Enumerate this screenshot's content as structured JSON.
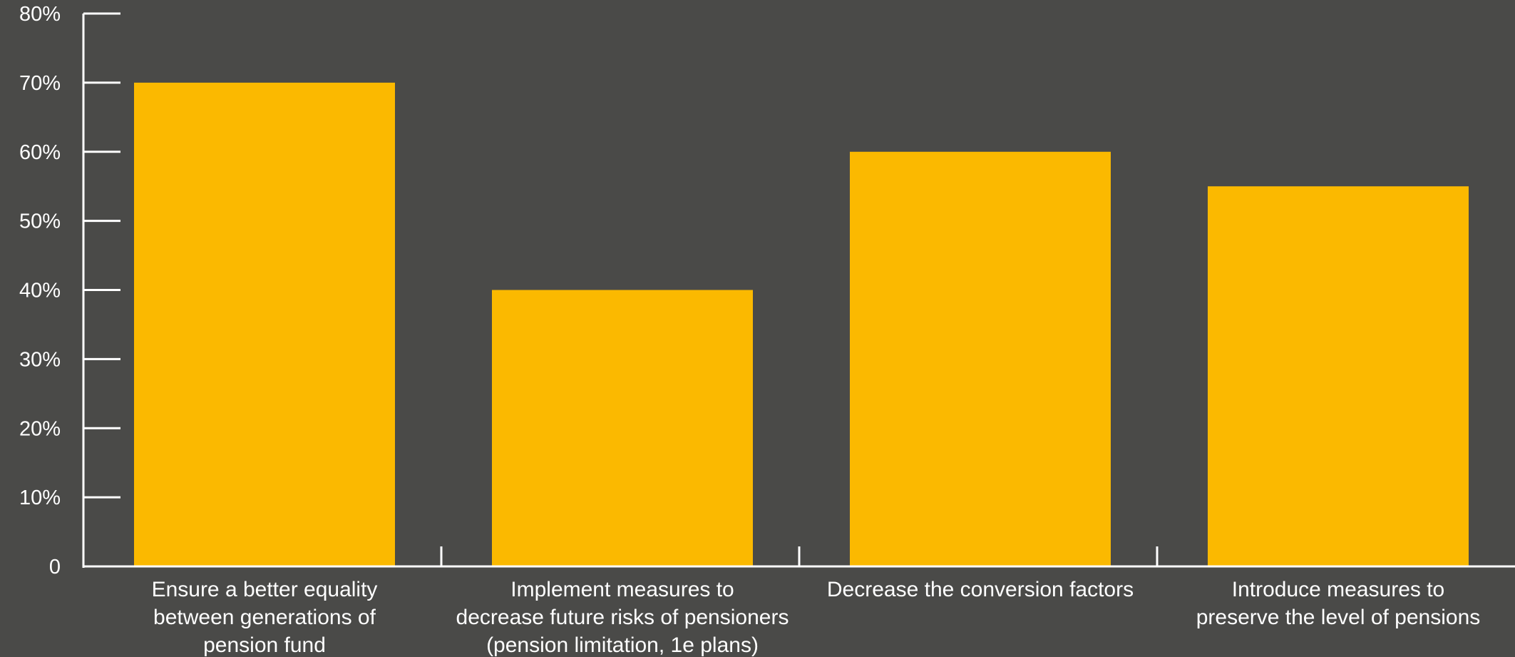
{
  "chart_data": {
    "type": "bar",
    "title": "",
    "xlabel": "",
    "ylabel": "",
    "ylim": [
      0,
      80
    ],
    "y_ticks": [
      {
        "value": 0,
        "label": "0"
      },
      {
        "value": 10,
        "label": "10%"
      },
      {
        "value": 20,
        "label": "20%"
      },
      {
        "value": 30,
        "label": "30%"
      },
      {
        "value": 40,
        "label": "40%"
      },
      {
        "value": 50,
        "label": "50%"
      },
      {
        "value": 60,
        "label": "60%"
      },
      {
        "value": 70,
        "label": "70%"
      },
      {
        "value": 80,
        "label": "80%"
      }
    ],
    "categories": [
      [
        "Ensure a better equality",
        "between generations of",
        "pension fund"
      ],
      [
        "Implement measures to",
        "decrease future risks of pensioners",
        "(pension limitation, 1e plans)"
      ],
      [
        "Decrease the conversion factors"
      ],
      [
        "Introduce measures to",
        "preserve the level of pensions"
      ]
    ],
    "values": [
      70,
      40,
      60,
      55
    ],
    "bar_color": "#fbb900",
    "background_color": "#4a4a48",
    "axis_color": "#ffffff",
    "grid": false,
    "legend": "none"
  }
}
